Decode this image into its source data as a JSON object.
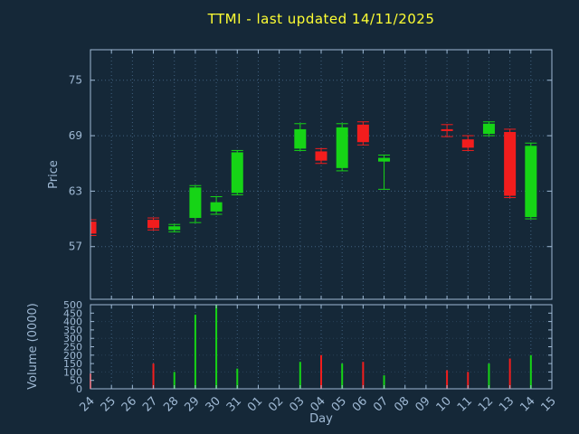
{
  "title": "TTMI - last updated 14/11/2025",
  "colors": {
    "background": "#152838",
    "text": "#9fb9d4",
    "title": "#ffff33",
    "grid": "#40607e",
    "border": "#9fb9d4",
    "up": "#16d416",
    "down": "#f21d1d"
  },
  "chart_data": {
    "type": "candlestick",
    "title": "TTMI - last updated 14/11/2025",
    "xlabel": "Day",
    "ylabel_price": "Price",
    "ylabel_volume": "Volume (0000)",
    "legend": "none",
    "grid": "dotted",
    "x_categories": [
      "24",
      "25",
      "26",
      "27",
      "28",
      "29",
      "30",
      "31",
      "01",
      "02",
      "03",
      "04",
      "05",
      "06",
      "07",
      "08",
      "09",
      "10",
      "11",
      "12",
      "13",
      "14",
      "15"
    ],
    "price_axis": {
      "min": 51.3,
      "max": 78.3,
      "ticks": [
        57,
        63,
        69,
        75
      ]
    },
    "volume_axis": {
      "min": 0,
      "max": 500,
      "ticks": [
        0,
        50,
        100,
        150,
        200,
        250,
        300,
        350,
        400,
        450,
        500
      ]
    },
    "candles": [
      {
        "day": "24",
        "open": 59.7,
        "high": 59.9,
        "low": 58.2,
        "close": 58.4,
        "volume": 90
      },
      {
        "day": "27",
        "open": 59.9,
        "high": 60.1,
        "low": 58.8,
        "close": 59.0,
        "volume": 150
      },
      {
        "day": "28",
        "open": 58.8,
        "high": 59.4,
        "low": 58.6,
        "close": 59.2,
        "volume": 100
      },
      {
        "day": "29",
        "open": 60.1,
        "high": 63.6,
        "low": 59.6,
        "close": 63.4,
        "volume": 440
      },
      {
        "day": "30",
        "open": 60.8,
        "high": 62.4,
        "low": 60.5,
        "close": 61.8,
        "volume": 500
      },
      {
        "day": "31",
        "open": 62.8,
        "high": 67.4,
        "low": 62.6,
        "close": 67.2,
        "volume": 120
      },
      {
        "day": "03",
        "open": 67.6,
        "high": 70.3,
        "low": 67.4,
        "close": 69.7,
        "volume": 160
      },
      {
        "day": "04",
        "open": 67.3,
        "high": 67.6,
        "low": 66.0,
        "close": 66.3,
        "volume": 200
      },
      {
        "day": "05",
        "open": 65.5,
        "high": 70.3,
        "low": 65.2,
        "close": 69.9,
        "volume": 150
      },
      {
        "day": "06",
        "open": 70.2,
        "high": 70.5,
        "low": 68.0,
        "close": 68.3,
        "volume": 160
      },
      {
        "day": "07",
        "open": 66.2,
        "high": 66.9,
        "low": 63.2,
        "close": 66.6,
        "volume": 80
      },
      {
        "day": "10",
        "open": 69.7,
        "high": 70.2,
        "low": 68.9,
        "close": 69.5,
        "volume": 110
      },
      {
        "day": "11",
        "open": 68.6,
        "high": 69.0,
        "low": 67.4,
        "close": 67.7,
        "volume": 100
      },
      {
        "day": "12",
        "open": 69.2,
        "high": 70.5,
        "low": 69.0,
        "close": 70.3,
        "volume": 150
      },
      {
        "day": "13",
        "open": 69.4,
        "high": 69.7,
        "low": 62.3,
        "close": 62.5,
        "volume": 180
      },
      {
        "day": "14",
        "open": 60.2,
        "high": 68.2,
        "low": 60.0,
        "close": 67.9,
        "volume": 200
      }
    ]
  }
}
